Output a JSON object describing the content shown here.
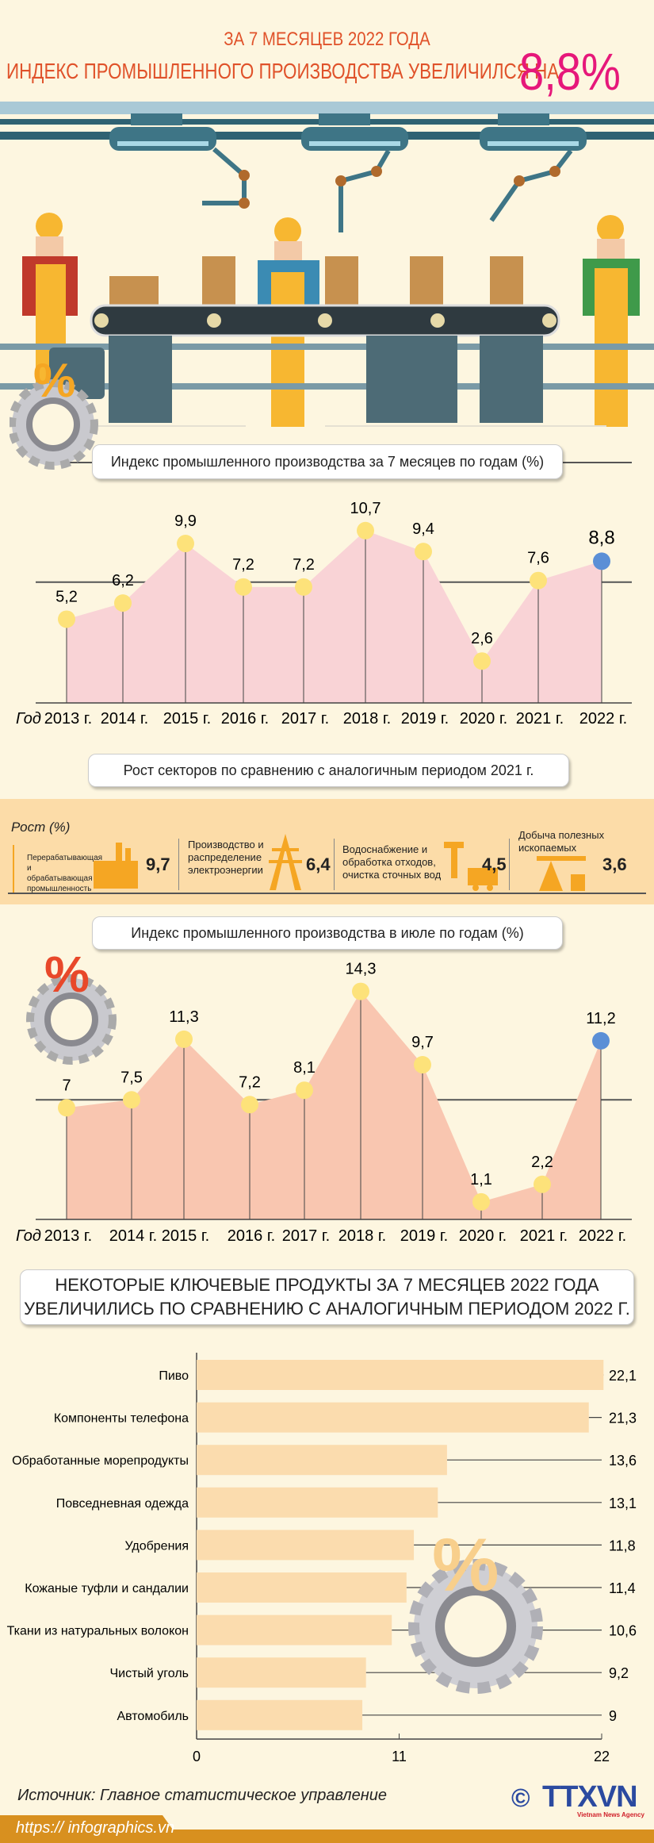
{
  "header": {
    "line1": "ЗА 7 МЕСЯЦЕВ 2022 ГОДА",
    "line2": "ИНДЕКС ПРОМЫШЛЕННОГО ПРОИЗВОДСТВА УВЕЛИЧИЛСЯ НА",
    "highlight": "8,8%"
  },
  "colors": {
    "title": "#e0522a",
    "highlight": "#e6187a",
    "area1": "#f9d3d6",
    "area2": "#f9c6b0",
    "dot": "#fde27a",
    "dot_current": "#5b8fd6",
    "bar": "#fbdcae",
    "footer": "#d8901f"
  },
  "chart_data": [
    {
      "type": "area",
      "title": "Индекс промышленного производства за 7 месяцев по годам (%)",
      "xlabel": "Год",
      "categories": [
        "2013 г.",
        "2014 г.",
        "2015 г.",
        "2016 г.",
        "2017 г.",
        "2018 г.",
        "2019 г.",
        "2020 г.",
        "2021 г.",
        "2022 г."
      ],
      "values": [
        5.2,
        6.2,
        9.9,
        7.2,
        7.2,
        10.7,
        9.4,
        2.6,
        7.6,
        8.8
      ],
      "labels": [
        "5,2",
        "6,2",
        "9,9",
        "7,2",
        "7,2",
        "10,7",
        "9,4",
        "2,6",
        "7,6",
        "8,8"
      ],
      "gridlines": [
        7.5
      ]
    },
    {
      "type": "area",
      "title": "Индекс промышленного производства в июле по годам (%)",
      "xlabel": "Год",
      "categories": [
        "2013 г.",
        "2014 г.",
        "2015 г.",
        "2016 г.",
        "2017 г.",
        "2018 г.",
        "2019 г.",
        "2020 г.",
        "2021 г.",
        "2022 г."
      ],
      "values": [
        7,
        7.5,
        11.3,
        7.2,
        8.1,
        14.3,
        9.7,
        1.1,
        2.2,
        11.2
      ],
      "labels": [
        "7",
        "7,5",
        "11,3",
        "7,2",
        "8,1",
        "14,3",
        "9,7",
        "1,1",
        "2,2",
        "11,2"
      ],
      "gridlines": [
        7.5,
        15
      ]
    },
    {
      "type": "bar",
      "orientation": "horizontal",
      "title": "НЕКОТОРЫЕ КЛЮЧЕВЫЕ ПРОДУКТЫ ЗА 7 МЕСЯЦЕВ 2022 ГОДА УВЕЛИЧИЛИСЬ ПО СРАВНЕНИЮ С АНАЛОГИЧНЫМ ПЕРИОДОМ 2022 Г.",
      "title_lines": [
        "НЕКОТОРЫЕ КЛЮЧЕВЫЕ ПРОДУКТЫ ЗА 7 МЕСЯЦЕВ 2022 ГОДА",
        "УВЕЛИЧИЛИСЬ ПО СРАВНЕНИЮ С АНАЛОГИЧНЫМ ПЕРИОДОМ 2022 Г."
      ],
      "categories": [
        "Пиво",
        "Компоненты телефона",
        "Обработанные морепродукты",
        "Повседневная одежда",
        "Удобрения",
        "Кожаные туфли и сандалии",
        "Ткани из натуральных волокон",
        "Чистый уголь",
        "Автомобиль"
      ],
      "values": [
        22.1,
        21.3,
        13.6,
        13.1,
        11.8,
        11.4,
        10.6,
        9.2,
        9
      ],
      "labels": [
        "22,1",
        "21,3",
        "13,6",
        "13,1",
        "11,8",
        "11,4",
        "10,6",
        "9,2",
        "9"
      ],
      "xlim": [
        0,
        22
      ],
      "ticks": [
        "0",
        "11",
        "22"
      ]
    }
  ],
  "sectors": {
    "title": "Рост секторов по сравнению с аналогичным периодом 2021 г.",
    "axis_label": "Рост (%)",
    "items": [
      {
        "label": "Перерабатывающая и обрабатывающая промышленность",
        "value": "9,7",
        "icon": "factory-icon"
      },
      {
        "label": "Производство и распределение электроэнергии",
        "value": "6,4",
        "icon": "power-tower-icon"
      },
      {
        "label": "Водоснабжение и обработка отходов, очистка сточных вод",
        "value": "4,5",
        "icon": "faucet-truck-icon"
      },
      {
        "label": "Добыча полезных ископаемых",
        "value": "3,6",
        "icon": "oil-pump-icon"
      }
    ]
  },
  "footer": {
    "source": "Источник: Главное статистическое управление",
    "url": "https:// infographics.vn",
    "logo": "TTXVN",
    "logo_sub": "Vietnam News Agency"
  }
}
